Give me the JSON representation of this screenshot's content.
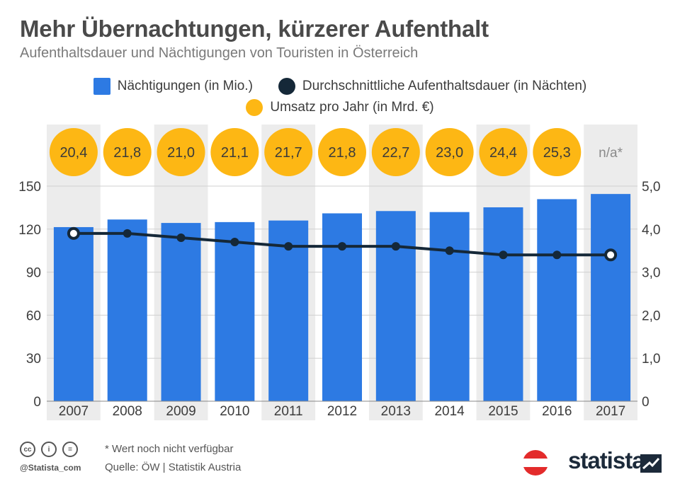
{
  "header": {
    "title": "Mehr Übernachtungen, kürzerer Aufenthalt",
    "subtitle": "Aufenthaltsdauer und Nächtigungen von Touristen in Österreich"
  },
  "legend": {
    "bars": "Nächtigungen (in Mio.)",
    "line": "Durchschnittliche Aufenthaltsdauer (in Nächten)",
    "revenue": "Umsatz pro Jahr (in Mrd. €)"
  },
  "colors": {
    "bar": "#2d7ae3",
    "line": "#152838",
    "revenue": "#fdb714",
    "band": "#ececec",
    "grid": "#d0d0d0"
  },
  "chart_data": {
    "type": "bar",
    "categories": [
      "2007",
      "2008",
      "2009",
      "2010",
      "2011",
      "2012",
      "2013",
      "2014",
      "2015",
      "2016",
      "2017"
    ],
    "series": [
      {
        "name": "Nächtigungen (in Mio.)",
        "type": "bar",
        "axis": "left",
        "values": [
          121.4,
          126.7,
          124.3,
          124.9,
          126.0,
          131.0,
          132.6,
          131.9,
          135.2,
          140.9,
          144.5
        ]
      },
      {
        "name": "Durchschnittliche Aufenthaltsdauer (in Nächten)",
        "type": "line",
        "axis": "right",
        "values": [
          3.9,
          3.9,
          3.8,
          3.7,
          3.6,
          3.6,
          3.6,
          3.5,
          3.4,
          3.4,
          3.4
        ]
      },
      {
        "name": "Umsatz pro Jahr (in Mrd. €)",
        "type": "label",
        "values": [
          20.4,
          21.8,
          21.0,
          21.1,
          21.7,
          21.8,
          22.7,
          23.0,
          24.4,
          25.3,
          null
        ],
        "labels": [
          "20,4",
          "21,8",
          "21,0",
          "21,1",
          "21,7",
          "21,8",
          "22,7",
          "23,0",
          "24,4",
          "25,3",
          "n/a*"
        ]
      }
    ],
    "y_left": {
      "min": 0,
      "max": 150,
      "ticks": [
        0,
        30,
        60,
        90,
        120,
        150
      ],
      "tick_labels": [
        "0",
        "30",
        "60",
        "90",
        "120",
        "150"
      ]
    },
    "y_right": {
      "min": 0,
      "max": 5,
      "ticks": [
        0,
        1,
        2,
        3,
        4,
        5
      ],
      "tick_labels": [
        "0",
        "1,0",
        "2,0",
        "3,0",
        "4,0",
        "5,0"
      ]
    },
    "grid": true,
    "legend_position": "top"
  },
  "footer": {
    "note": "* Wert noch nicht verfügbar",
    "source": "Quelle: ÖW | Statistik Austria",
    "handle": "@Statista_com",
    "brand": "statista",
    "cc_icons": [
      "cc",
      "i",
      "="
    ]
  }
}
